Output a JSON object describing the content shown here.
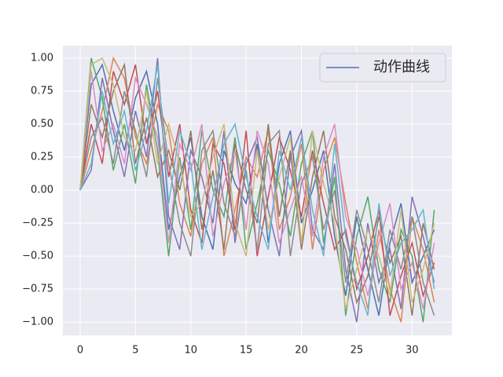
{
  "chart_data": {
    "type": "line",
    "x": [
      0,
      1,
      2,
      3,
      4,
      5,
      6,
      7,
      8,
      9,
      10,
      11,
      12,
      13,
      14,
      15,
      16,
      17,
      18,
      19,
      20,
      21,
      22,
      23,
      24,
      25,
      26,
      27,
      28,
      29,
      30,
      31,
      32
    ],
    "series": [
      {
        "name": "动作曲线",
        "color": "#4c72b0",
        "values": [
          0,
          0.8,
          0.95,
          0.6,
          0.3,
          0.7,
          0.9,
          0.5,
          -0.3,
          0.1,
          0.4,
          -0.2,
          -0.45,
          0.3,
          0.05,
          -0.1,
          0.35,
          -0.4,
          0.2,
          0.45,
          -0.25,
          0.0,
          0.3,
          -0.35,
          -0.8,
          -0.2,
          -0.6,
          -0.95,
          -0.4,
          -0.1,
          -0.7,
          -0.5,
          -0.3
        ]
      },
      {
        "color": "#dd8452",
        "values": [
          0,
          0.3,
          0.6,
          1.0,
          0.85,
          0.4,
          0.2,
          0.65,
          0.45,
          -0.1,
          -0.35,
          0.2,
          0.4,
          -0.5,
          -0.15,
          0.25,
          0.1,
          0.45,
          -0.3,
          -0.05,
          0.35,
          -0.45,
          0.15,
          0.4,
          -0.1,
          -0.55,
          -0.9,
          -0.3,
          -0.75,
          -1.0,
          -0.2,
          -0.45,
          -0.85
        ]
      },
      {
        "color": "#55a868",
        "values": [
          0,
          1.0,
          0.7,
          0.15,
          0.5,
          0.05,
          0.8,
          0.3,
          -0.5,
          0.25,
          -0.3,
          0.45,
          0.0,
          -0.2,
          0.4,
          -0.45,
          -0.1,
          0.3,
          0.05,
          -0.35,
          0.2,
          0.45,
          -0.4,
          0.1,
          -0.95,
          -0.35,
          -0.05,
          -0.6,
          -0.85,
          -0.3,
          -0.5,
          -1.0,
          -0.15
        ]
      },
      {
        "color": "#c44e52",
        "values": [
          0,
          0.5,
          0.2,
          0.9,
          0.65,
          0.95,
          0.35,
          0.75,
          0.1,
          0.5,
          -0.15,
          -0.4,
          0.35,
          0.2,
          -0.3,
          0.45,
          -0.5,
          -0.05,
          0.4,
          0.15,
          -0.2,
          0.3,
          -0.1,
          -0.45,
          -0.3,
          -0.75,
          -0.5,
          -0.15,
          -0.95,
          -0.65,
          -0.4,
          -0.8,
          -0.55
        ]
      },
      {
        "color": "#8172b3",
        "values": [
          0,
          0.15,
          0.85,
          0.45,
          0.1,
          0.6,
          0.25,
          1.0,
          -0.2,
          -0.45,
          0.3,
          0.1,
          -0.25,
          0.45,
          -0.4,
          0.2,
          0.4,
          -0.15,
          -0.5,
          0.25,
          0.45,
          -0.3,
          -0.45,
          0.2,
          -0.6,
          -1.0,
          -0.25,
          -0.7,
          -0.45,
          -0.9,
          -0.05,
          -0.35,
          -0.7
        ]
      },
      {
        "color": "#937860",
        "values": [
          0,
          0.65,
          0.4,
          0.75,
          0.95,
          0.2,
          0.55,
          0.1,
          0.3,
          0.0,
          0.45,
          -0.3,
          0.15,
          -0.45,
          0.35,
          0.0,
          -0.25,
          0.5,
          -0.2,
          0.3,
          -0.45,
          0.1,
          0.45,
          -0.2,
          -0.45,
          -0.85,
          -0.65,
          -0.2,
          -0.55,
          -0.35,
          -0.95,
          -0.25,
          -0.6
        ]
      },
      {
        "color": "#da8bc3",
        "values": [
          0,
          0.9,
          0.3,
          0.5,
          0.2,
          0.85,
          0.65,
          0.4,
          -0.4,
          0.35,
          0.15,
          0.5,
          -0.35,
          0.05,
          0.3,
          -0.3,
          0.45,
          0.2,
          -0.4,
          -0.15,
          0.1,
          -0.35,
          0.25,
          0.5,
          -0.2,
          -0.45,
          -0.8,
          -0.4,
          -0.1,
          -0.75,
          -0.55,
          -0.9,
          -0.4
        ]
      },
      {
        "color": "#8c8c8c",
        "values": [
          0,
          0.4,
          0.55,
          0.2,
          0.75,
          0.45,
          0.1,
          0.85,
          0.2,
          -0.25,
          -0.5,
          0.3,
          0.45,
          -0.1,
          -0.35,
          0.15,
          -0.45,
          0.35,
          0.45,
          -0.5,
          0.05,
          0.25,
          -0.3,
          0.0,
          -0.7,
          -0.15,
          -0.45,
          -0.85,
          -0.3,
          -0.6,
          -0.2,
          -0.7,
          -0.95
        ]
      },
      {
        "color": "#ccb974",
        "values": [
          0,
          0.95,
          1.0,
          0.8,
          0.4,
          0.3,
          0.75,
          0.2,
          0.5,
          0.2,
          -0.2,
          -0.1,
          0.25,
          0.5,
          -0.25,
          -0.5,
          0.3,
          -0.3,
          0.1,
          0.4,
          -0.4,
          0.45,
          0.05,
          -0.25,
          -0.9,
          -0.6,
          -0.3,
          -0.5,
          -0.8,
          -0.15,
          -0.85,
          -0.6,
          -0.25
        ]
      },
      {
        "color": "#64b5cd",
        "values": [
          0,
          0.2,
          0.75,
          0.35,
          0.6,
          0.15,
          0.45,
          0.95,
          -0.1,
          0.45,
          0.2,
          -0.45,
          -0.05,
          0.35,
          0.5,
          0.1,
          -0.2,
          -0.45,
          0.3,
          0.0,
          0.4,
          -0.15,
          -0.5,
          0.35,
          -0.35,
          -0.7,
          -0.95,
          -0.1,
          -0.65,
          -0.4,
          -0.3,
          -0.15,
          -0.75
        ]
      }
    ],
    "xlim": [
      -1.56,
      33.6
    ],
    "ylim": [
      -1.1,
      1.095
    ],
    "xticks": [
      0,
      5,
      10,
      15,
      20,
      25,
      30
    ],
    "yticks": [
      {
        "value": -1,
        "label": "−1.00"
      },
      {
        "value": -0.75,
        "label": "−0.75"
      },
      {
        "value": -0.5,
        "label": "−0.50"
      },
      {
        "value": -0.25,
        "label": "−0.25"
      },
      {
        "value": 0,
        "label": "0.00"
      },
      {
        "value": 0.25,
        "label": "0.25"
      },
      {
        "value": 0.5,
        "label": "0.50"
      },
      {
        "value": 0.75,
        "label": "0.75"
      },
      {
        "value": 1,
        "label": "1.00"
      }
    ],
    "grid": true,
    "legend": "upper right"
  }
}
